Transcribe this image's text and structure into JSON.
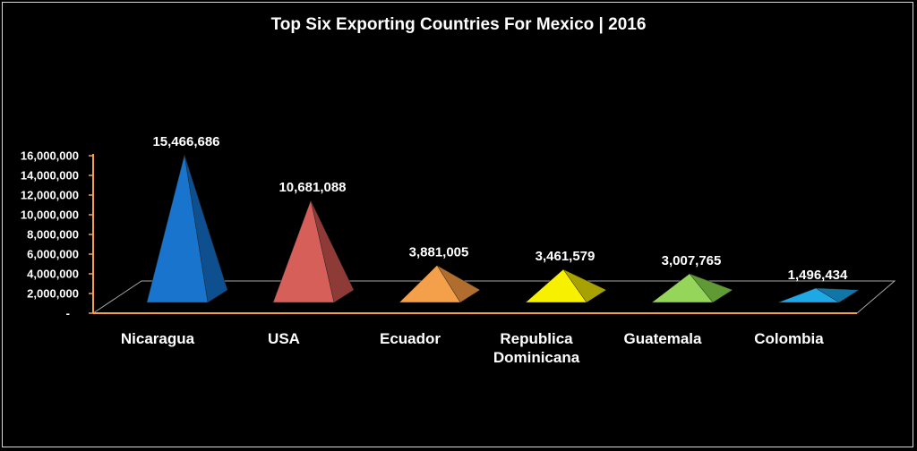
{
  "chart_data": {
    "type": "bar",
    "subtype": "3d-pyramid",
    "title": "Top Six Exporting Countries  For Mexico | 2016",
    "categories": [
      "Nicaragua",
      "USA",
      "Ecuador",
      "Republica Dominicana",
      "Guatemala",
      "Colombia"
    ],
    "category_lines": [
      [
        "Nicaragua"
      ],
      [
        "USA"
      ],
      [
        "Ecuador"
      ],
      [
        "Republica",
        "Dominicana"
      ],
      [
        "Guatemala"
      ],
      [
        "Colombia"
      ]
    ],
    "values": [
      15466686,
      10681088,
      3881005,
      3461579,
      3007765,
      1496434
    ],
    "data_labels": [
      "15,466,686",
      "10,681,088",
      "3,881,005",
      "3,461,579",
      "3,007,765",
      "1,496,434"
    ],
    "colors": [
      "#1874cd",
      "#d65f5a",
      "#f4a04a",
      "#f7f000",
      "#95d65a",
      "#1ea9e6"
    ],
    "dark_colors": [
      "#0e4f8f",
      "#8e3b37",
      "#b06d2d",
      "#a8a200",
      "#5f9a35",
      "#1076a8"
    ],
    "ylim": [
      0,
      16000000
    ],
    "yticks": [
      0,
      2000000,
      4000000,
      6000000,
      8000000,
      10000000,
      12000000,
      14000000,
      16000000
    ],
    "ytick_labels": [
      "-",
      "2,000,000",
      "4,000,000",
      "6,000,000",
      "8,000,000",
      "10,000,000",
      "12,000,000",
      "14,000,000",
      "16,000,000"
    ],
    "xlabel": "",
    "ylabel": "",
    "grid": false,
    "legend": "none",
    "axis_color": "#f4a04a"
  }
}
